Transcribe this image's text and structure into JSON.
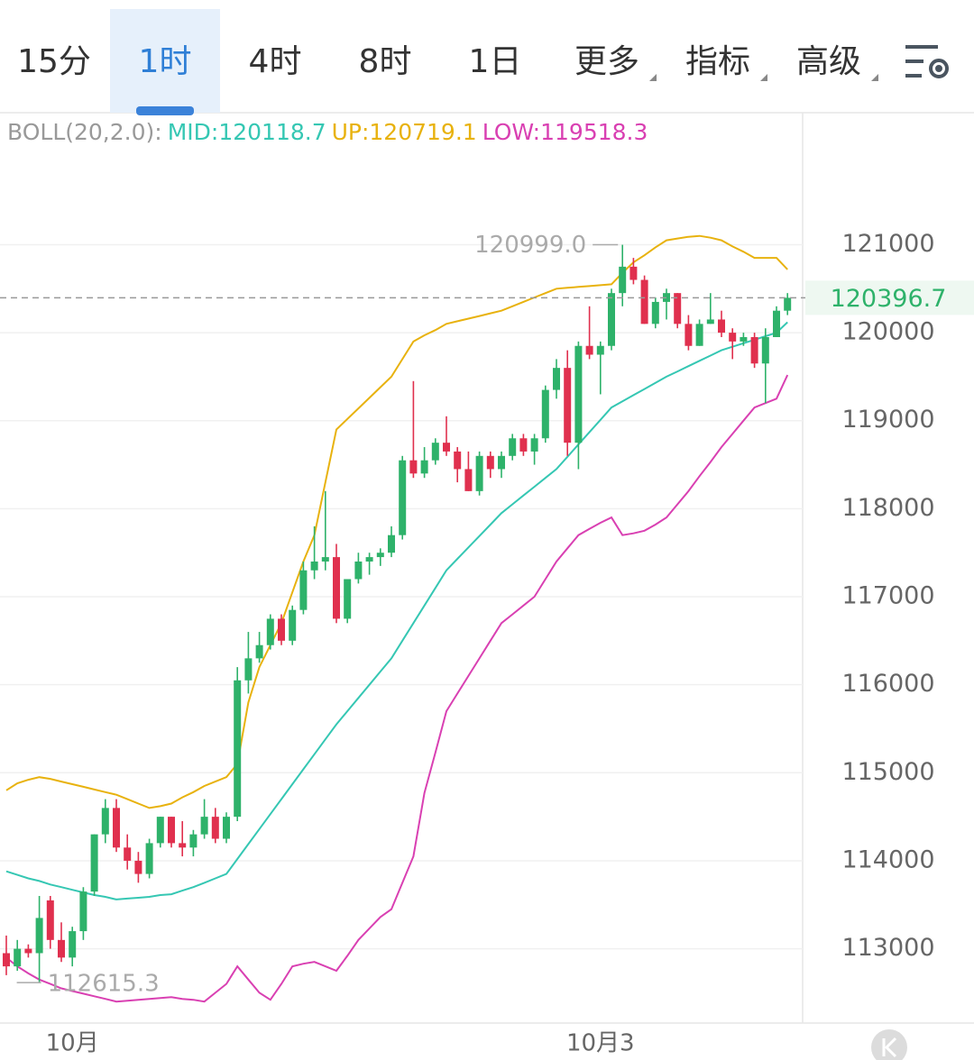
{
  "tabs": [
    {
      "label": "15分",
      "dropdown": false
    },
    {
      "label": "1时",
      "dropdown": false
    },
    {
      "label": "4时",
      "dropdown": false
    },
    {
      "label": "8时",
      "dropdown": false
    },
    {
      "label": "1日",
      "dropdown": false
    },
    {
      "label": "更多",
      "dropdown": true
    },
    {
      "label": "指标",
      "dropdown": true
    },
    {
      "label": "高级",
      "dropdown": true
    }
  ],
  "active_tab": 1,
  "chart_data": {
    "type": "candlestick",
    "indicator_label": "BOLL(20,2.0):",
    "up_color": "#2eb26a",
    "down_color": "#e0304e",
    "categories": [
      null,
      null,
      null,
      null,
      null,
      null,
      "10月",
      null,
      null,
      null,
      null,
      null,
      null,
      null,
      null,
      null,
      null,
      null,
      null,
      null,
      null,
      null,
      null,
      null,
      null,
      null,
      null,
      null,
      null,
      null,
      null,
      null,
      null,
      null,
      null,
      null,
      null,
      null,
      null,
      null,
      null,
      null,
      null,
      null,
      null,
      null,
      null,
      null,
      null,
      null,
      null,
      null,
      null,
      null,
      "10月3",
      null,
      null,
      null,
      null,
      null,
      null,
      null,
      null,
      null,
      null,
      null,
      null,
      null,
      null,
      null,
      null,
      null
    ],
    "open": [
      112950,
      112800,
      113000,
      112950,
      113550,
      113100,
      112900,
      113200,
      113650,
      114300,
      114600,
      114150,
      114000,
      113850,
      114200,
      114500,
      114200,
      114150,
      114300,
      114500,
      114250,
      114500,
      116050,
      116300,
      116450,
      116750,
      116500,
      116850,
      117300,
      117400,
      117450,
      116750,
      117200,
      117400,
      117450,
      117500,
      117700,
      118550,
      118400,
      118550,
      118750,
      118650,
      118450,
      118200,
      118600,
      118450,
      118600,
      118800,
      118650,
      118800,
      119350,
      119600,
      118750,
      119850,
      119750,
      119850,
      120450,
      120750,
      120600,
      120100,
      120350,
      120450,
      120100,
      119850,
      120100,
      120150,
      120000,
      119900,
      119950,
      119650,
      119950,
      120250
    ],
    "high": [
      113150,
      113100,
      113050,
      113600,
      113600,
      113300,
      113250,
      113700,
      114300,
      114700,
      114700,
      114300,
      114100,
      114250,
      114500,
      114500,
      114450,
      114350,
      114700,
      114600,
      114550,
      116200,
      116600,
      116600,
      116800,
      116800,
      116900,
      117400,
      117800,
      118200,
      117600,
      117200,
      117500,
      117500,
      117550,
      117800,
      118600,
      119450,
      118700,
      118800,
      119050,
      118700,
      118650,
      118650,
      118650,
      118650,
      118850,
      118850,
      118850,
      119400,
      119700,
      119800,
      119900,
      120300,
      119900,
      120500,
      120999.0,
      120850,
      120650,
      120400,
      120500,
      120450,
      120200,
      120150,
      120450,
      120250,
      120050,
      120000,
      120000,
      120050,
      120300,
      120450
    ],
    "low": [
      112700,
      112750,
      112900,
      112615.3,
      113000,
      112850,
      112800,
      113100,
      113600,
      114200,
      114100,
      113900,
      113750,
      113800,
      114150,
      114150,
      114050,
      114050,
      114250,
      114200,
      114200,
      114450,
      115900,
      116250,
      116400,
      116450,
      116450,
      116800,
      117200,
      117300,
      116700,
      116700,
      117150,
      117250,
      117350,
      117450,
      117650,
      118350,
      118350,
      118500,
      118600,
      118300,
      118200,
      118150,
      118350,
      118350,
      118550,
      118600,
      118500,
      118750,
      119250,
      118600,
      118450,
      119700,
      119300,
      119800,
      120300,
      120550,
      120100,
      120050,
      120150,
      120050,
      119800,
      119850,
      120100,
      119950,
      119700,
      119850,
      119600,
      119200,
      119950,
      120200
    ],
    "close": [
      112800,
      113000,
      112950,
      113350,
      113100,
      112900,
      113200,
      113650,
      114300,
      114600,
      114150,
      114000,
      113850,
      114200,
      114500,
      114200,
      114150,
      114300,
      114500,
      114250,
      114500,
      116050,
      116300,
      116450,
      116750,
      116500,
      116850,
      117300,
      117400,
      117450,
      116750,
      117200,
      117400,
      117450,
      117500,
      117700,
      118550,
      118400,
      118550,
      118750,
      118650,
      118450,
      118200,
      118600,
      118450,
      118600,
      118800,
      118650,
      118800,
      119350,
      119600,
      118750,
      119850,
      119750,
      119850,
      120450,
      120750,
      120600,
      120100,
      120350,
      120450,
      120100,
      119850,
      120100,
      120150,
      120000,
      119900,
      119950,
      119650,
      119950,
      120250,
      120396.7
    ],
    "series": [
      {
        "name": "MID",
        "legend_label": "MID:120118.7",
        "color": "#35c7b3",
        "values": [
          113880,
          113840,
          113800,
          113770,
          113730,
          113700,
          113670,
          113640,
          113610,
          113590,
          113560,
          113570,
          113580,
          113590,
          113610,
          113620,
          113660,
          113700,
          113750,
          113800,
          113850,
          114020,
          114190,
          114360,
          114530,
          114700,
          114870,
          115040,
          115210,
          115380,
          115550,
          115700,
          115850,
          116000,
          116150,
          116300,
          116500,
          116700,
          116900,
          117100,
          117300,
          117430,
          117560,
          117690,
          117820,
          117950,
          118050,
          118150,
          118250,
          118350,
          118450,
          118590,
          118730,
          118870,
          119010,
          119150,
          119220,
          119290,
          119360,
          119430,
          119500,
          119560,
          119620,
          119680,
          119740,
          119800,
          119840,
          119880,
          119920,
          119960,
          120000,
          120118.7
        ]
      },
      {
        "name": "UP",
        "legend_label": "UP:120719.1",
        "color": "#e8b20e",
        "values": [
          114800,
          114880,
          114920,
          114950,
          114930,
          114900,
          114870,
          114840,
          114810,
          114780,
          114750,
          114700,
          114650,
          114600,
          114620,
          114650,
          114720,
          114780,
          114850,
          114900,
          114950,
          115100,
          115800,
          116200,
          116450,
          116700,
          117050,
          117400,
          117700,
          118300,
          118900,
          119020,
          119140,
          119260,
          119380,
          119500,
          119700,
          119900,
          119970,
          120030,
          120100,
          120130,
          120160,
          120190,
          120220,
          120250,
          120300,
          120350,
          120400,
          120450,
          120500,
          120510,
          120520,
          120530,
          120540,
          120550,
          120680,
          120800,
          120880,
          120970,
          121050,
          121070,
          121090,
          121100,
          121080,
          121050,
          120980,
          120920,
          120850,
          120850,
          120850,
          120719.1
        ]
      },
      {
        "name": "LOW",
        "legend_label": "LOW:119518.3",
        "color": "#d940b2",
        "values": [
          112900,
          112800,
          112720,
          112650,
          112600,
          112550,
          112520,
          112490,
          112460,
          112430,
          112400,
          112410,
          112420,
          112430,
          112440,
          112450,
          112430,
          112420,
          112400,
          112500,
          112600,
          112800,
          112650,
          112500,
          112420,
          112600,
          112800,
          112830,
          112850,
          112800,
          112750,
          112920,
          113100,
          113230,
          113360,
          113450,
          113750,
          114050,
          114770,
          115230,
          115700,
          115900,
          116100,
          116300,
          116500,
          116700,
          116800,
          116900,
          117000,
          117200,
          117400,
          117550,
          117700,
          117770,
          117840,
          117900,
          117700,
          117720,
          117750,
          117820,
          117900,
          118050,
          118200,
          118370,
          118530,
          118700,
          118850,
          119000,
          119150,
          119200,
          119250,
          119518.3
        ]
      }
    ],
    "annotations": [
      {
        "value": 120999.0,
        "label": "120999.0"
      },
      {
        "value": 112615.3,
        "label": "112615.3"
      }
    ],
    "ylim": [
      112156,
      122500
    ],
    "yticks": [
      113000,
      114000,
      115000,
      116000,
      117000,
      118000,
      119000,
      120000,
      121000
    ],
    "grid": true
  }
}
